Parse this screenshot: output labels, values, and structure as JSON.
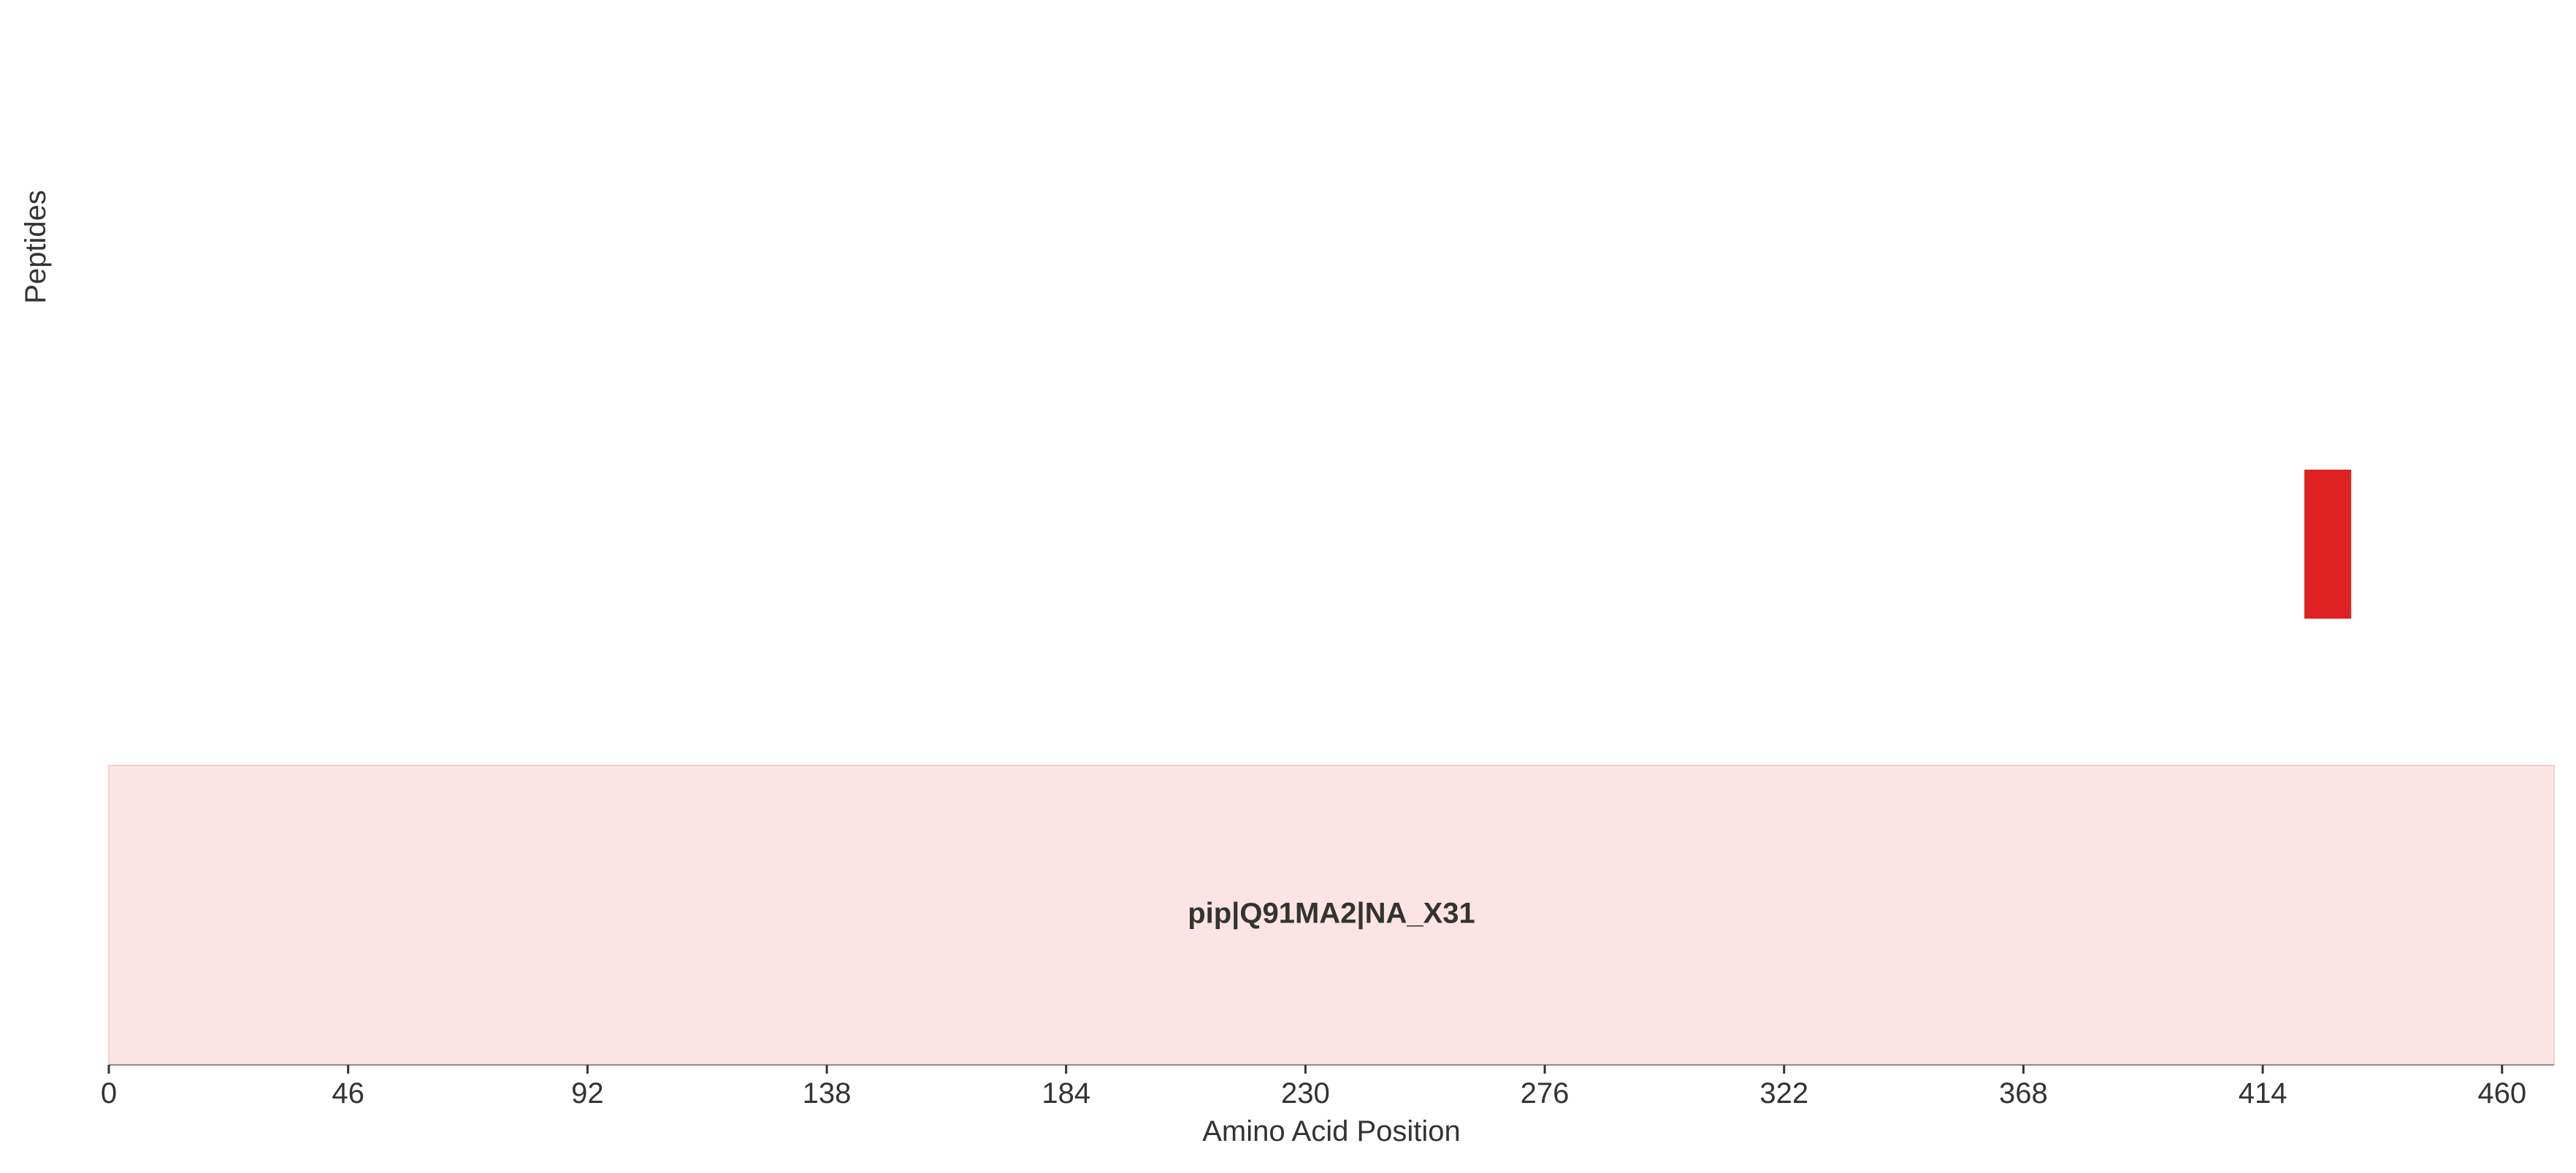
{
  "chart_data": {
    "type": "bar",
    "orientation": "horizontal-intervals",
    "title": "",
    "xlabel": "Amino Acid Position",
    "ylabel": "Peptides",
    "xlim": [
      0,
      470
    ],
    "x_ticks": [
      0,
      46,
      92,
      138,
      184,
      230,
      276,
      322,
      368,
      414,
      460
    ],
    "grid": false,
    "protein": {
      "label": "pip|Q91MA2|NA_X31",
      "start": 0,
      "end": 470,
      "color": "#fde4e4"
    },
    "peptides": [
      {
        "start": 422,
        "end": 431,
        "color": "#de2121"
      }
    ]
  }
}
